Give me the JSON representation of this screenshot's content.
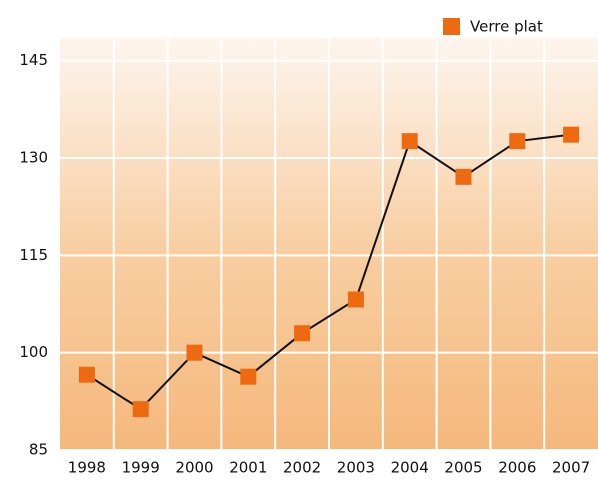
{
  "chart_data": {
    "type": "line",
    "categories": [
      "1998",
      "1999",
      "2000",
      "2001",
      "2002",
      "2003",
      "2004",
      "2005",
      "2006",
      "2007"
    ],
    "series": [
      {
        "name": "Verre plat",
        "color": "#ee6a10",
        "values": [
          96.6,
          91.3,
          100,
          96.3,
          103,
          108.2,
          132.6,
          127.1,
          132.6,
          133.6
        ]
      }
    ],
    "ylim": [
      85,
      148.5
    ],
    "yticks": [
      85,
      100,
      115,
      130,
      145
    ],
    "grid": true,
    "legend": "top-right"
  }
}
